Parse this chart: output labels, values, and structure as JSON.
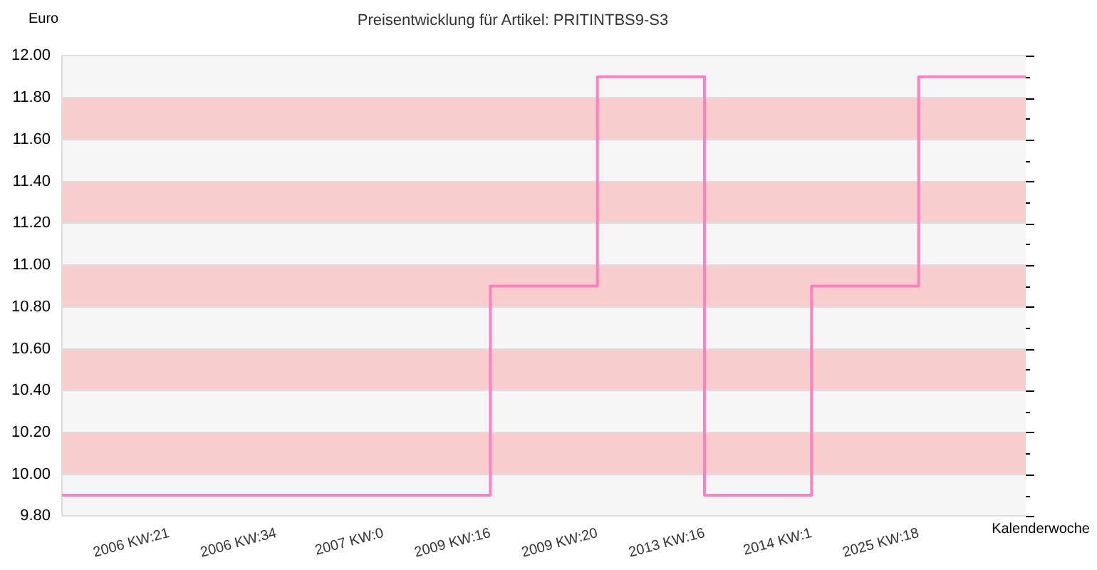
{
  "chart_data": {
    "type": "step",
    "title": "Preisentwicklung für Artikel: PRITINTBS9-S3",
    "ylabel": "Euro",
    "xlabel": "Kalenderwoche",
    "categories": [
      null,
      "2006 KW:21",
      "2006 KW:34",
      "2007 KW:0",
      "2009 KW:16",
      "2009 KW:20",
      "2013 KW:16",
      "2014 KW:1",
      "2025 KW:18",
      null
    ],
    "series": [
      {
        "color": "#ff80c0",
        "values": [
          9.9,
          9.9,
          9.9,
          9.9,
          10.9,
          11.9,
          9.9,
          10.9,
          11.9,
          11.9
        ]
      }
    ],
    "ylim": [
      9.8,
      12
    ],
    "yticks": [
      {
        "value": 9.8,
        "label": "9.80"
      },
      {
        "value": 9.9,
        "label": null
      },
      {
        "value": 10,
        "label": "10.00"
      },
      {
        "value": 10.1,
        "label": null
      },
      {
        "value": 10.2,
        "label": "10.20"
      },
      {
        "value": 10.3,
        "label": null
      },
      {
        "value": 10.4,
        "label": "10.40"
      },
      {
        "value": 10.5,
        "label": null
      },
      {
        "value": 10.6,
        "label": "10.60"
      },
      {
        "value": 10.7,
        "label": null
      },
      {
        "value": 10.8,
        "label": "10.80"
      },
      {
        "value": 10.9,
        "label": null
      },
      {
        "value": 11,
        "label": "11.00"
      },
      {
        "value": 11.1,
        "label": null
      },
      {
        "value": 11.2,
        "label": "11.20"
      },
      {
        "value": 11.3,
        "label": null
      },
      {
        "value": 11.4,
        "label": "11.40"
      },
      {
        "value": 11.5,
        "label": null
      },
      {
        "value": 11.6,
        "label": "11.60"
      },
      {
        "value": 11.7,
        "label": null
      },
      {
        "value": 11.8,
        "label": "11.80"
      },
      {
        "value": 11.9,
        "label": null
      },
      {
        "value": 12,
        "label": "12.00"
      }
    ],
    "bands": [
      {
        "axis": "y",
        "from": 10,
        "to": 10.2,
        "color": "#f8cdcd"
      },
      {
        "axis": "y",
        "from": 10.4,
        "to": 10.6,
        "color": "#f8cdcd"
      },
      {
        "axis": "y",
        "from": 10.8,
        "to": 11,
        "color": "#f8cdcd"
      },
      {
        "axis": "y",
        "from": 11.2,
        "to": 11.4,
        "color": "#f8cdcd"
      },
      {
        "axis": "y",
        "from": 11.6,
        "to": 11.8,
        "color": "#f8cdcd"
      }
    ],
    "grid": "y",
    "legend": false,
    "marker": "none",
    "line_style": "solid"
  }
}
